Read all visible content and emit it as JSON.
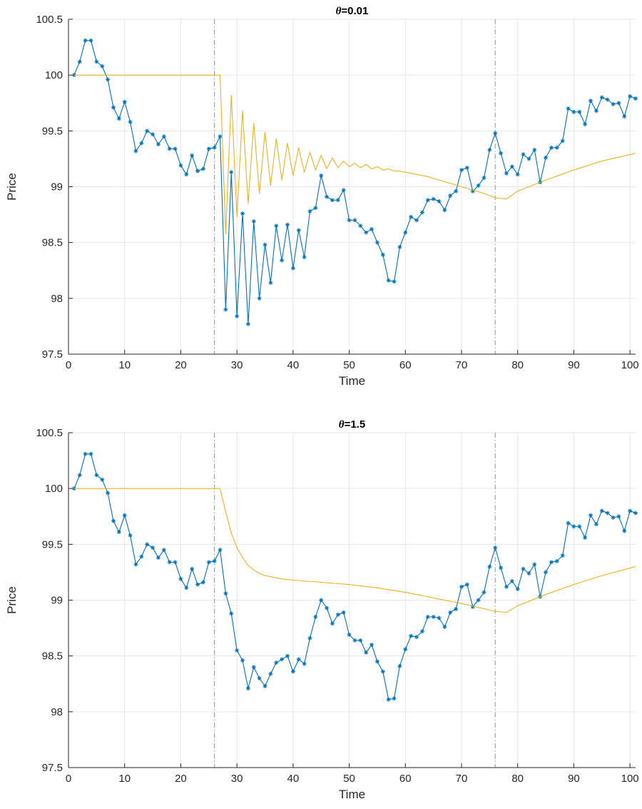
{
  "chart_data": [
    {
      "type": "line",
      "title_symbol": "θ",
      "title_value": "=0.01",
      "xlabel": "Time",
      "ylabel": "Price",
      "xlim": [
        0,
        101
      ],
      "ylim": [
        97.5,
        100.5
      ],
      "xticks": [
        "0",
        "10",
        "20",
        "30",
        "40",
        "50",
        "60",
        "70",
        "80",
        "90",
        "100"
      ],
      "yticks": [
        "97.5",
        "98",
        "98.5",
        "99",
        "99.5",
        "100",
        "100.5"
      ],
      "grid": true,
      "vlines": [
        26,
        76
      ],
      "colors": {
        "price": "#0072BD",
        "reference": "#EDB120",
        "vline": "#909090"
      },
      "series": [
        {
          "marker": "asterisk",
          "x": [
            1,
            2,
            3,
            4,
            5,
            6,
            7,
            8,
            9,
            10,
            11,
            12,
            13,
            14,
            15,
            16,
            17,
            18,
            19,
            20,
            21,
            22,
            23,
            24,
            25,
            26,
            27,
            28,
            29,
            30,
            31,
            32,
            33,
            34,
            35,
            36,
            37,
            38,
            39,
            40,
            41,
            42,
            43,
            44,
            45,
            46,
            47,
            48,
            49,
            50,
            51,
            52,
            53,
            54,
            55,
            56,
            57,
            58,
            59,
            60,
            61,
            62,
            63,
            64,
            65,
            66,
            67,
            68,
            69,
            70,
            71,
            72,
            73,
            74,
            75,
            76,
            77,
            78,
            79,
            80,
            81,
            82,
            83,
            84,
            85,
            86,
            87,
            88,
            89,
            90,
            91,
            92,
            93,
            94,
            95,
            96,
            97,
            98,
            99,
            100,
            101
          ],
          "values": [
            100.0,
            100.12,
            100.31,
            100.31,
            100.12,
            100.08,
            99.96,
            99.71,
            99.61,
            99.76,
            99.58,
            99.32,
            99.39,
            99.5,
            99.47,
            99.38,
            99.45,
            99.34,
            99.34,
            99.19,
            99.11,
            99.28,
            99.14,
            99.16,
            99.34,
            99.35,
            99.45,
            97.9,
            99.13,
            97.84,
            98.76,
            97.77,
            98.69,
            98.0,
            98.48,
            98.14,
            98.65,
            98.34,
            98.66,
            98.27,
            98.61,
            98.37,
            98.78,
            98.81,
            99.1,
            98.91,
            98.88,
            98.88,
            98.97,
            98.7,
            98.7,
            98.65,
            98.59,
            98.62,
            98.5,
            98.39,
            98.16,
            98.15,
            98.46,
            98.59,
            98.73,
            98.7,
            98.77,
            98.88,
            98.89,
            98.87,
            98.79,
            98.92,
            98.96,
            99.15,
            99.17,
            98.96,
            99.01,
            99.08,
            99.33,
            99.48,
            99.3,
            99.12,
            99.18,
            99.11,
            99.29,
            99.25,
            99.33,
            99.04,
            99.26,
            99.35,
            99.35,
            99.41,
            99.7,
            99.67,
            99.67,
            99.56,
            99.77,
            99.68,
            99.8,
            99.78,
            99.74,
            99.75,
            99.63,
            99.81,
            99.79
          ]
        },
        {
          "marker": "none",
          "x": [
            1,
            27,
            28,
            29,
            30,
            31,
            32,
            33,
            34,
            35,
            36,
            37,
            38,
            39,
            40,
            41,
            42,
            43,
            44,
            45,
            46,
            47,
            48,
            49,
            50,
            51,
            52,
            53,
            54,
            55,
            56,
            57,
            58,
            59,
            60,
            62,
            64,
            66,
            68,
            70,
            72,
            74,
            76,
            78,
            80,
            85,
            90,
            95,
            101
          ],
          "values": [
            100.0,
            100.0,
            98.58,
            99.82,
            98.73,
            99.68,
            98.85,
            99.57,
            98.94,
            99.49,
            99.01,
            99.43,
            99.06,
            99.39,
            99.1,
            99.35,
            99.13,
            99.31,
            99.15,
            99.28,
            99.16,
            99.26,
            99.17,
            99.23,
            99.18,
            99.21,
            99.17,
            99.2,
            99.16,
            99.18,
            99.15,
            99.16,
            99.14,
            99.14,
            99.13,
            99.11,
            99.09,
            99.06,
            99.03,
            99.0,
            98.97,
            98.94,
            98.9,
            98.89,
            98.96,
            99.06,
            99.15,
            99.23,
            99.3
          ]
        }
      ]
    },
    {
      "type": "line",
      "title_symbol": "θ",
      "title_value": "=1.5",
      "xlabel": "Time",
      "ylabel": "Price",
      "xlim": [
        0,
        101
      ],
      "ylim": [
        97.5,
        100.5
      ],
      "xticks": [
        "0",
        "10",
        "20",
        "30",
        "40",
        "50",
        "60",
        "70",
        "80",
        "90",
        "100"
      ],
      "yticks": [
        "97.5",
        "98",
        "98.5",
        "99",
        "99.5",
        "100",
        "100.5"
      ],
      "grid": true,
      "vlines": [
        26,
        76
      ],
      "colors": {
        "price": "#0072BD",
        "reference": "#EDB120",
        "vline": "#909090"
      },
      "series": [
        {
          "marker": "asterisk",
          "x": [
            1,
            2,
            3,
            4,
            5,
            6,
            7,
            8,
            9,
            10,
            11,
            12,
            13,
            14,
            15,
            16,
            17,
            18,
            19,
            20,
            21,
            22,
            23,
            24,
            25,
            26,
            27,
            28,
            29,
            30,
            31,
            32,
            33,
            34,
            35,
            36,
            37,
            38,
            39,
            40,
            41,
            42,
            43,
            44,
            45,
            46,
            47,
            48,
            49,
            50,
            51,
            52,
            53,
            54,
            55,
            56,
            57,
            58,
            59,
            60,
            61,
            62,
            63,
            64,
            65,
            66,
            67,
            68,
            69,
            70,
            71,
            72,
            73,
            74,
            75,
            76,
            77,
            78,
            79,
            80,
            81,
            82,
            83,
            84,
            85,
            86,
            87,
            88,
            89,
            90,
            91,
            92,
            93,
            94,
            95,
            96,
            97,
            98,
            99,
            100,
            101
          ],
          "values": [
            100.0,
            100.12,
            100.31,
            100.31,
            100.12,
            100.08,
            99.96,
            99.71,
            99.61,
            99.76,
            99.58,
            99.32,
            99.39,
            99.5,
            99.47,
            99.38,
            99.45,
            99.34,
            99.34,
            99.19,
            99.11,
            99.28,
            99.14,
            99.16,
            99.34,
            99.35,
            99.45,
            99.06,
            98.88,
            98.55,
            98.46,
            98.21,
            98.4,
            98.3,
            98.23,
            98.34,
            98.44,
            98.47,
            98.5,
            98.36,
            98.47,
            98.43,
            98.66,
            98.85,
            99.0,
            98.93,
            98.79,
            98.87,
            98.89,
            98.69,
            98.64,
            98.64,
            98.53,
            98.6,
            98.45,
            98.36,
            98.11,
            98.12,
            98.41,
            98.56,
            98.68,
            98.67,
            98.72,
            98.85,
            98.85,
            98.84,
            98.76,
            98.89,
            98.92,
            99.12,
            99.14,
            98.94,
            99.0,
            99.07,
            99.3,
            99.47,
            99.29,
            99.12,
            99.17,
            99.1,
            99.28,
            99.24,
            99.32,
            99.03,
            99.25,
            99.34,
            99.35,
            99.4,
            99.69,
            99.66,
            99.66,
            99.56,
            99.76,
            99.68,
            99.8,
            99.78,
            99.74,
            99.75,
            99.62,
            99.8,
            99.78
          ]
        },
        {
          "marker": "none",
          "x": [
            1,
            27,
            28,
            29,
            30,
            31,
            32,
            33,
            34,
            35,
            36,
            38,
            40,
            45,
            50,
            55,
            60,
            65,
            70,
            76,
            78,
            80,
            85,
            90,
            95,
            101
          ],
          "values": [
            100.0,
            100.0,
            99.79,
            99.6,
            99.47,
            99.38,
            99.31,
            99.27,
            99.24,
            99.22,
            99.21,
            99.19,
            99.18,
            99.16,
            99.14,
            99.11,
            99.07,
            99.02,
            98.97,
            98.9,
            98.89,
            98.95,
            99.05,
            99.14,
            99.22,
            99.3
          ]
        }
      ]
    }
  ]
}
